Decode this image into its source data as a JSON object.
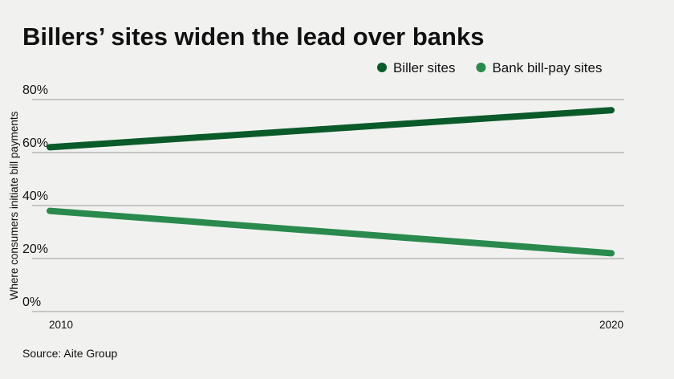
{
  "chart_data": {
    "type": "line",
    "title": "Billers’ sites widen the lead over banks",
    "y_label": "Where consumers initiate bill payments",
    "source": "Source: Aite Group",
    "x": [
      2010,
      2020
    ],
    "xlim": [
      2010,
      2020
    ],
    "xticks": [
      2010,
      2020
    ],
    "series": [
      {
        "name": "Biller sites",
        "color": "#0b5a2a",
        "values": [
          62,
          76
        ]
      },
      {
        "name": "Bank bill-pay sites",
        "color": "#2a8a4e",
        "values": [
          38,
          22
        ]
      }
    ],
    "ylim": [
      0,
      80
    ],
    "yticks": [
      {
        "value": 0,
        "label": "0%"
      },
      {
        "value": 20,
        "label": "20%"
      },
      {
        "value": 40,
        "label": "40%"
      },
      {
        "value": 60,
        "label": "60%"
      },
      {
        "value": 80,
        "label": "80%"
      }
    ],
    "grid": true,
    "legend": "top-right"
  }
}
